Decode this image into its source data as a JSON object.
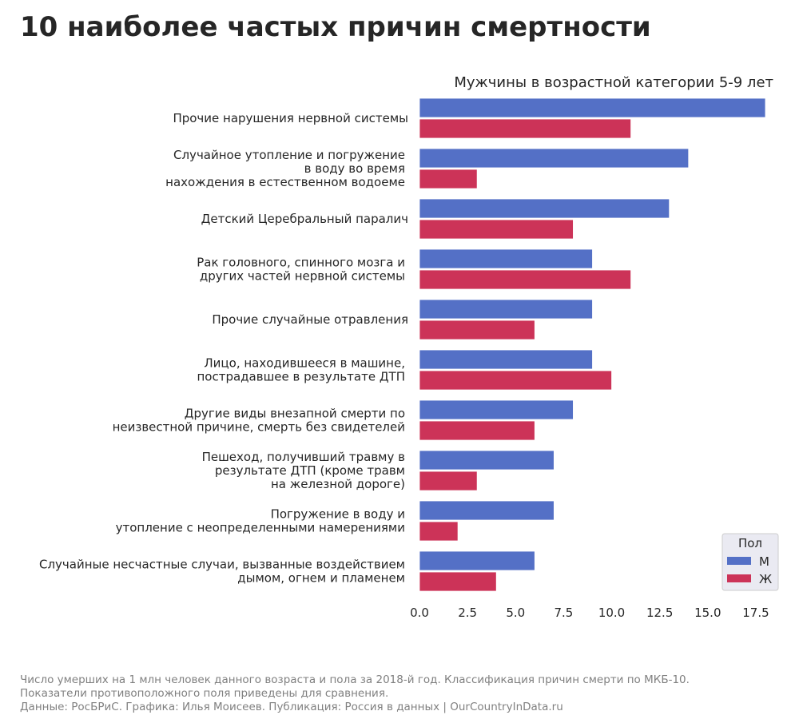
{
  "page": {
    "title": "10 наиболее частых причин смертности"
  },
  "footer": {
    "line1": "Число умерших на 1 млн человек данного возраста и пола за 2018-й год. Классификация причин смерти по МКБ-10.",
    "line2": "Показатели противоположного поля приведены для сравнения.",
    "line3": "Данные: РосБРиС. Графика: Илья Моисеев. Публикация: Россия в данных | OurCountryInData.ru"
  },
  "chart_data": {
    "type": "bar",
    "orientation": "horizontal",
    "title": "Мужчины в возрастной категории 5-9 лет",
    "categories": [
      [
        "Прочие нарушения нервной системы"
      ],
      [
        "Случайное утопление и погружение",
        "в воду во время",
        "нахождения в естественном водоеме"
      ],
      [
        "Детский Церебральный паралич"
      ],
      [
        "Рак головного, спинного мозга и",
        "других частей нервной системы"
      ],
      [
        "Прочие случайные отравления"
      ],
      [
        "Лицо, находившееся в машине,",
        "пострадавшее в результате ДТП"
      ],
      [
        "Другие виды внезапной смерти по",
        "неизвестной причине, смерть без свидетелей"
      ],
      [
        "Пешеход, получивший травму в",
        "результате ДТП (кроме травм",
        "на железной дороге)"
      ],
      [
        "Погружение в воду и",
        "утопление с неопределенными намерениями"
      ],
      [
        "Случайные несчастные случаи, вызванные воздействием",
        "дымом, огнем и пламенем"
      ]
    ],
    "series": [
      {
        "name": "М",
        "color": "#5470c6",
        "values": [
          18,
          14,
          13,
          9,
          9,
          9,
          8,
          7,
          7,
          6
        ]
      },
      {
        "name": "Ж",
        "color": "#cc3358",
        "values": [
          11,
          3,
          8,
          11,
          6,
          10,
          6,
          3,
          2,
          4
        ]
      }
    ],
    "xlim": [
      0,
      18.5
    ],
    "xticks": [
      "0.0",
      "2.5",
      "5.0",
      "7.5",
      "10.0",
      "12.5",
      "15.0",
      "17.5"
    ],
    "xtick_values": [
      0,
      2.5,
      5,
      7.5,
      10,
      12.5,
      15,
      17.5
    ],
    "grid": false,
    "legend": {
      "title": "Пол",
      "placement": "bottom-right"
    }
  }
}
